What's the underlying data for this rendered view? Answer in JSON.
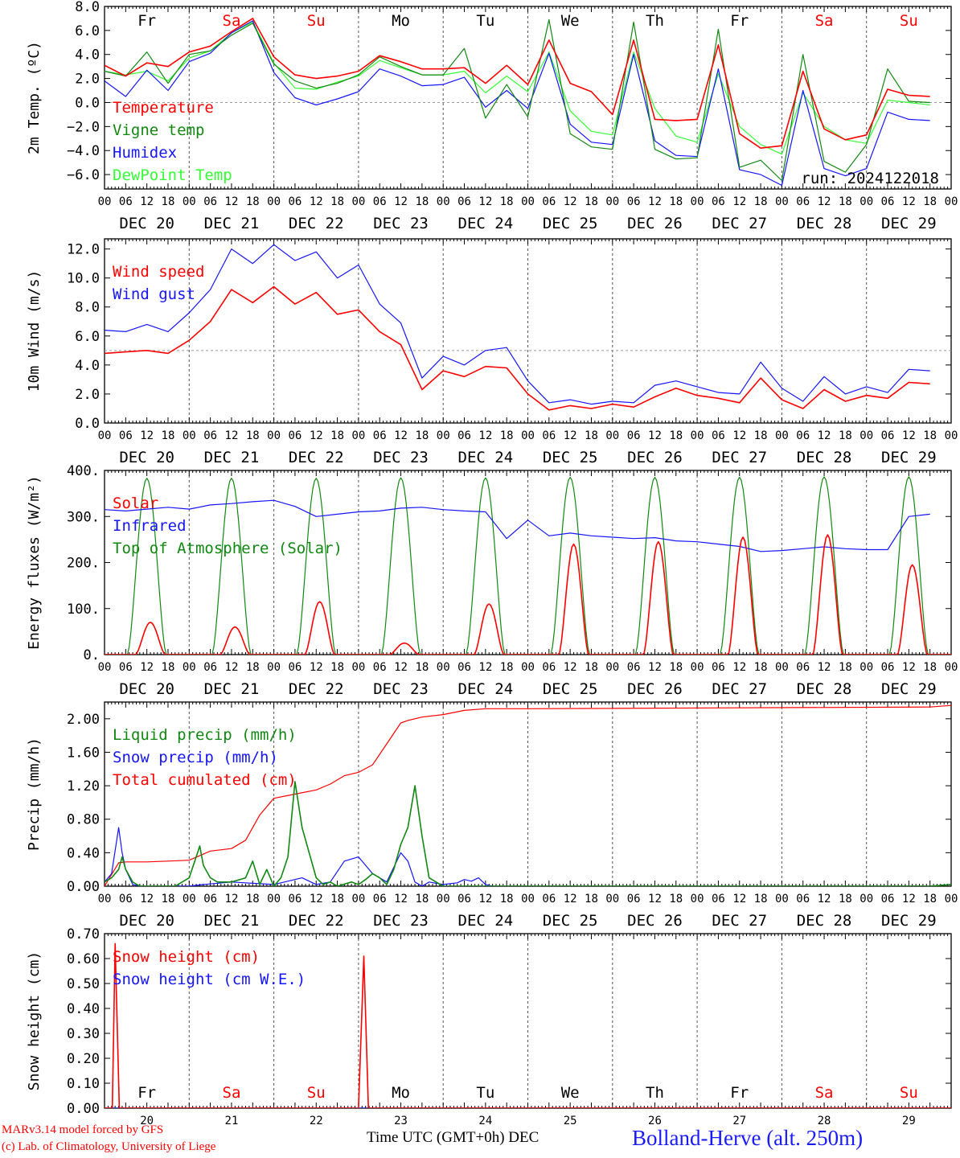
{
  "footer": {
    "credit_line1": "MARv3.14 model forced by GFS",
    "credit_line2": "(c) Lab. of Climatology, University of Liege",
    "x_axis_caption": "Time UTC (GMT+0h)",
    "x_axis_month": "DEC",
    "station": "Bolland-Herve (alt. 250m)"
  },
  "colors": {
    "red": "#ff0000",
    "green": "#118811",
    "blue": "#1515ff",
    "light_green": "#33ff33",
    "grid": "#888888"
  },
  "time_axis": {
    "hour_ticks": [
      "00",
      "06",
      "12",
      "18"
    ],
    "final_tick": "00",
    "date_labels": [
      "DEC 20",
      "DEC 21",
      "DEC 22",
      "DEC 23",
      "DEC 24",
      "DEC 25",
      "DEC 26",
      "DEC 27",
      "DEC 28",
      "DEC 29"
    ],
    "day_numbers": [
      "20",
      "21",
      "22",
      "23",
      "24",
      "25",
      "26",
      "27",
      "28",
      "29"
    ],
    "weekdays": [
      "Fr",
      "Sa",
      "Su",
      "Mo",
      "Tu",
      "We",
      "Th",
      "Fr",
      "Sa",
      "Su"
    ],
    "weekend_color": "#ff0000",
    "weekday_color": "#000000"
  },
  "chart_data": [
    {
      "id": "temperature",
      "type": "line",
      "ylabel": "2m Temp. (ºC)",
      "ylim": [
        -7.2,
        8.0
      ],
      "yticks": [
        8.0,
        6.0,
        4.0,
        2.0,
        0.0,
        -2.0,
        -4.0,
        -6.0
      ],
      "ytick_labels": [
        "8.0",
        "6.0",
        "4.0",
        "2.0",
        "0.0",
        "−2.0",
        "−4.0",
        "−6.0"
      ],
      "dashed_reference": 0,
      "annotation": "run: 2024122018",
      "x": [
        0,
        6,
        12,
        18,
        24,
        30,
        36,
        42,
        48,
        54,
        60,
        66,
        72,
        78,
        84,
        90,
        96,
        102,
        108,
        114,
        120,
        126,
        132,
        138,
        144,
        150,
        156,
        162,
        168,
        174,
        180,
        186,
        192,
        198,
        204,
        210,
        216,
        222,
        228,
        234
      ],
      "series": [
        {
          "name": "Temperature",
          "color": "#ff0000",
          "values": [
            3.1,
            2.2,
            3.3,
            3.0,
            4.2,
            4.7,
            5.9,
            7.0,
            3.8,
            2.3,
            2.0,
            2.2,
            2.6,
            3.9,
            3.4,
            2.8,
            2.8,
            2.9,
            1.6,
            3.1,
            1.5,
            5.2,
            1.6,
            0.9,
            -1.0,
            5.2,
            -1.4,
            -1.5,
            -1.4,
            4.8,
            -2.6,
            -3.8,
            -3.6,
            2.6,
            -2.2,
            -3.1,
            -2.7,
            1.1,
            0.6,
            0.5
          ]
        },
        {
          "name": "Vigne temp",
          "color": "#118811",
          "values": [
            2.6,
            2.2,
            4.2,
            1.6,
            4.0,
            4.3,
            5.6,
            6.6,
            3.2,
            1.8,
            1.2,
            1.6,
            2.3,
            3.8,
            3.0,
            2.3,
            2.3,
            4.5,
            -1.3,
            1.5,
            -1.2,
            6.9,
            -2.6,
            -3.7,
            -3.9,
            6.7,
            -3.9,
            -4.7,
            -4.6,
            6.1,
            -5.4,
            -4.8,
            -6.5,
            4.0,
            -4.9,
            -5.8,
            -3.5,
            2.8,
            0.1,
            0.0
          ]
        },
        {
          "name": "Humidex",
          "color": "#1515ff",
          "values": [
            1.8,
            0.5,
            2.7,
            1.0,
            3.4,
            4.1,
            5.8,
            6.8,
            2.5,
            0.4,
            -0.2,
            0.3,
            0.9,
            2.8,
            2.2,
            1.4,
            1.5,
            2.1,
            -0.4,
            1.0,
            -0.5,
            4.1,
            -1.8,
            -3.3,
            -3.5,
            4.0,
            -3.2,
            -4.4,
            -4.5,
            2.8,
            -5.6,
            -6.0,
            -6.9,
            1.0,
            -5.5,
            -6.1,
            -5.5,
            -0.8,
            -1.4,
            -1.5
          ]
        },
        {
          "name": "DewPoint Temp",
          "color": "#33ff33",
          "values": [
            2.6,
            2.3,
            2.6,
            1.8,
            3.7,
            4.3,
            5.8,
            6.7,
            3.3,
            1.2,
            1.1,
            1.7,
            2.2,
            3.5,
            2.9,
            2.3,
            2.3,
            2.6,
            0.8,
            2.2,
            0.9,
            4.2,
            -0.7,
            -2.4,
            -2.7,
            4.2,
            -0.5,
            -2.8,
            -3.3,
            2.4,
            -2.0,
            -3.5,
            -4.3,
            0.8,
            -2.0,
            -3.1,
            -3.4,
            0.2,
            0.0,
            -0.2
          ]
        }
      ]
    },
    {
      "id": "wind",
      "type": "line",
      "ylabel": "10m Wind (m/s)",
      "ylim": [
        0,
        12.7
      ],
      "yticks": [
        0,
        2,
        4,
        6,
        8,
        10,
        12
      ],
      "ytick_labels": [
        "0.0",
        "2.0",
        "4.0",
        "6.0",
        "8.0",
        "10.0",
        "12.0"
      ],
      "dashed_reference": 5,
      "x": [
        0,
        6,
        12,
        18,
        24,
        30,
        36,
        42,
        48,
        54,
        60,
        66,
        72,
        78,
        84,
        90,
        96,
        102,
        108,
        114,
        120,
        126,
        132,
        138,
        144,
        150,
        156,
        162,
        168,
        174,
        180,
        186,
        192,
        198,
        204,
        210,
        216,
        222,
        228,
        234
      ],
      "series": [
        {
          "name": "Wind speed",
          "color": "#ff0000",
          "values": [
            4.8,
            4.9,
            5.0,
            4.8,
            5.7,
            7.0,
            9.2,
            8.3,
            9.4,
            8.2,
            9.0,
            7.5,
            7.8,
            6.3,
            5.4,
            2.3,
            3.6,
            3.2,
            3.9,
            3.8,
            2.0,
            0.9,
            1.2,
            1.0,
            1.3,
            1.1,
            1.8,
            2.4,
            1.9,
            1.7,
            1.4,
            3.1,
            1.6,
            1.0,
            2.3,
            1.5,
            1.9,
            1.7,
            2.8,
            2.7
          ]
        },
        {
          "name": "Wind gust",
          "color": "#1515ff",
          "values": [
            6.4,
            6.3,
            6.8,
            6.3,
            7.6,
            9.2,
            12.0,
            11.0,
            12.3,
            11.2,
            11.8,
            10.0,
            10.9,
            8.2,
            6.9,
            3.1,
            4.6,
            4.0,
            5.0,
            5.2,
            2.9,
            1.4,
            1.6,
            1.3,
            1.5,
            1.4,
            2.6,
            2.9,
            2.5,
            2.1,
            2.0,
            4.2,
            2.4,
            1.5,
            3.2,
            2.0,
            2.5,
            2.1,
            3.7,
            3.6
          ]
        }
      ]
    },
    {
      "id": "energy",
      "type": "line",
      "ylabel": "Energy fluxes (W/m²)",
      "ylim": [
        0,
        400
      ],
      "yticks": [
        0,
        100,
        200,
        300,
        400
      ],
      "ytick_labels": [
        "0.",
        "100.",
        "200.",
        "300.",
        "400."
      ],
      "x": [
        0,
        6,
        12,
        18,
        24,
        30,
        36,
        42,
        48,
        54,
        60,
        66,
        72,
        78,
        84,
        90,
        96,
        102,
        108,
        114,
        120,
        126,
        132,
        138,
        144,
        150,
        156,
        162,
        168,
        174,
        180,
        186,
        192,
        198,
        204,
        210,
        216,
        222,
        228,
        234
      ],
      "series": [
        {
          "name": "Solar",
          "color": "#ff0000",
          "daily_peak": [
            70,
            60,
            115,
            25,
            110,
            240,
            245,
            255,
            260,
            195
          ],
          "daily_peak_hour": 13
        },
        {
          "name": "Infrared",
          "color": "#1515ff",
          "values": [
            315,
            312,
            316,
            320,
            316,
            325,
            328,
            332,
            335,
            322,
            300,
            305,
            310,
            312,
            318,
            320,
            315,
            312,
            310,
            252,
            292,
            258,
            264,
            258,
            255,
            252,
            254,
            247,
            245,
            240,
            235,
            224,
            226,
            230,
            234,
            230,
            228,
            228,
            300,
            305
          ]
        },
        {
          "name": "Top of Atmosphere (Solar)",
          "color": "#118811",
          "daily_peak": [
            383,
            383,
            383,
            384,
            384,
            385,
            385,
            385,
            386,
            386
          ],
          "daily_peak_hour": 12
        }
      ]
    },
    {
      "id": "precip",
      "type": "line",
      "ylabel": "Precip (mm/h)",
      "ylim": [
        0,
        2.2
      ],
      "yticks": [
        0,
        0.4,
        0.8,
        1.2,
        1.6,
        2.0
      ],
      "ytick_labels": [
        "0.00",
        "0.40",
        "0.80",
        "1.20",
        "1.60",
        "2.00"
      ],
      "series": [
        {
          "name": "Liquid precip (mm/h)",
          "color": "#118811",
          "x": [
            0,
            2,
            4,
            5,
            6,
            8,
            10,
            14,
            20,
            22,
            24,
            27,
            28,
            30,
            32,
            36,
            40,
            42,
            44,
            46,
            48,
            50,
            52,
            54,
            56,
            60,
            62,
            64,
            66,
            70,
            72,
            74,
            76,
            78,
            80,
            82,
            84,
            86,
            88,
            90,
            92,
            94,
            96,
            234,
            240
          ],
          "values": [
            0.05,
            0.1,
            0.2,
            0.35,
            0.2,
            0.05,
            0.0,
            0.0,
            0.0,
            0.05,
            0.1,
            0.48,
            0.25,
            0.1,
            0.05,
            0.05,
            0.1,
            0.3,
            0.02,
            0.2,
            0.0,
            0.1,
            0.35,
            1.25,
            0.7,
            0.1,
            0.02,
            0.05,
            0.0,
            0.05,
            0.02,
            0.08,
            0.15,
            0.1,
            0.02,
            0.2,
            0.5,
            0.7,
            1.2,
            0.6,
            0.1,
            0.05,
            0.0,
            0.0,
            0.02
          ]
        },
        {
          "name": "Snow precip (mm/h)",
          "color": "#1515ff",
          "x": [
            0,
            2,
            4,
            5,
            6,
            8,
            10,
            14,
            20,
            24,
            28,
            36,
            48,
            56,
            60,
            64,
            68,
            72,
            76,
            80,
            84,
            86,
            88,
            90,
            92,
            96,
            100,
            102,
            104,
            106,
            108,
            110,
            234,
            240
          ],
          "values": [
            0.05,
            0.15,
            0.7,
            0.4,
            0.2,
            0.02,
            0.0,
            0.0,
            0.0,
            0.0,
            0.02,
            0.05,
            0.02,
            0.1,
            0.02,
            0.05,
            0.3,
            0.35,
            0.15,
            0.05,
            0.4,
            0.3,
            0.05,
            0.0,
            0.05,
            0.02,
            0.04,
            0.08,
            0.06,
            0.1,
            0.02,
            0.0,
            0.0,
            0.02
          ]
        },
        {
          "name": "Total cumulated (cm)",
          "color": "#ff0000",
          "x": [
            0,
            4,
            6,
            12,
            18,
            24,
            30,
            36,
            40,
            44,
            48,
            54,
            60,
            64,
            68,
            72,
            76,
            80,
            84,
            86,
            90,
            96,
            102,
            108,
            120,
            234,
            240
          ],
          "values": [
            0.0,
            0.28,
            0.29,
            0.29,
            0.3,
            0.31,
            0.42,
            0.45,
            0.55,
            0.85,
            1.05,
            1.1,
            1.15,
            1.22,
            1.32,
            1.36,
            1.45,
            1.7,
            1.95,
            1.98,
            2.02,
            2.05,
            2.1,
            2.12,
            2.12,
            2.14,
            2.16
          ]
        }
      ]
    },
    {
      "id": "snow",
      "type": "line",
      "ylabel": "Snow height (cm)",
      "ylim": [
        0,
        0.7
      ],
      "yticks": [
        0,
        0.1,
        0.2,
        0.3,
        0.4,
        0.5,
        0.6,
        0.7
      ],
      "ytick_labels": [
        "0.00",
        "0.10",
        "0.20",
        "0.30",
        "0.40",
        "0.50",
        "0.60",
        "0.70"
      ],
      "series": [
        {
          "name": "Snow height (cm)",
          "color": "#ff0000",
          "x": [
            0,
            2.2,
            3.0,
            4.2,
            72,
            73.5,
            74.8,
            240
          ],
          "values": [
            0,
            0,
            0.66,
            0,
            0,
            0.61,
            0,
            0
          ]
        },
        {
          "name": "Snow height (cm W.E.)",
          "color": "#1515ff",
          "x": [
            0,
            240
          ],
          "values": [
            0,
            0
          ]
        }
      ]
    }
  ]
}
